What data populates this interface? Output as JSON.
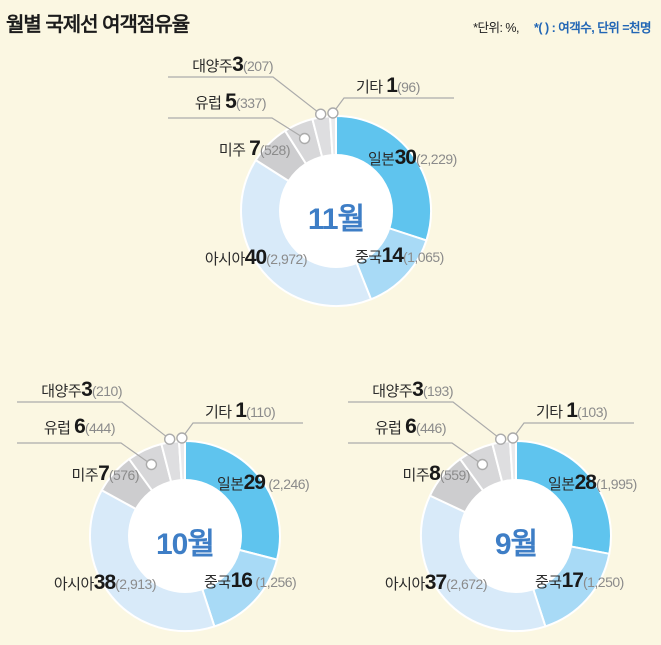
{
  "page": {
    "bg": "#FBF7E2"
  },
  "header": {
    "title": "월별 국제선 여객점유율",
    "unit_note_dark": "*단위: %,",
    "unit_note_blue": "*( ) : 여객수, 단위 =천명"
  },
  "colors": {
    "japan": "#5FC4EE",
    "china": "#A8DAF6",
    "asia": "#D8EAF9",
    "americas": "#CDCDCF",
    "europe": "#D7D7D9",
    "oceania": "#DEDEE0",
    "etc": "#EAEAEC",
    "hole": "#FFFFFF",
    "center_label": "#3E7EC6",
    "note_blue": "#2166B5",
    "leader_line": "#ABABAB"
  },
  "chart_data": {
    "type": "pie",
    "subtype": "donut",
    "title": "월별 국제선 여객점유율",
    "unit": "%",
    "paren_note": "여객수, 단위 =천명",
    "segments_order": [
      "일본",
      "중국",
      "아시아",
      "미주",
      "유럽",
      "대양주",
      "기타"
    ],
    "charts": [
      {
        "id": "nov",
        "center": "11월",
        "slices": [
          {
            "key": "japan",
            "name": "일본",
            "pct": 30,
            "count": "(2,229)"
          },
          {
            "key": "china",
            "name": "중국",
            "pct": 14,
            "count": "(1,065)"
          },
          {
            "key": "asia",
            "name": "아시아",
            "pct": 40,
            "count": "(2,972)"
          },
          {
            "key": "americas",
            "name": "미주 ",
            "pct": 7,
            "count": "(528)"
          },
          {
            "key": "europe",
            "name": "유럽 ",
            "pct": 5,
            "count": "(337)"
          },
          {
            "key": "oceania",
            "name": "대양주",
            "pct": 3,
            "count": "(207)"
          },
          {
            "key": "etc",
            "name": "기타 ",
            "pct": 1,
            "count": "(96)"
          }
        ]
      },
      {
        "id": "oct",
        "center": "10월",
        "slices": [
          {
            "key": "japan",
            "name": "일본",
            "pct": 29,
            "count": " (2,246)"
          },
          {
            "key": "china",
            "name": "중국",
            "pct": 16,
            "count": " (1,256)"
          },
          {
            "key": "asia",
            "name": "아시아",
            "pct": 38,
            "count": "(2,913)"
          },
          {
            "key": "americas",
            "name": "미주",
            "pct": 7,
            "count": "(576)"
          },
          {
            "key": "europe",
            "name": "유럽 ",
            "pct": 6,
            "count": "(444)"
          },
          {
            "key": "oceania",
            "name": "대양주",
            "pct": 3,
            "count": "(210)"
          },
          {
            "key": "etc",
            "name": "기타 ",
            "pct": 1,
            "count": "(110)"
          }
        ]
      },
      {
        "id": "sep",
        "center": "9월",
        "slices": [
          {
            "key": "japan",
            "name": "일본",
            "pct": 28,
            "count": "(1,995)"
          },
          {
            "key": "china",
            "name": "중국",
            "pct": 17,
            "count": "(1,250)"
          },
          {
            "key": "asia",
            "name": "아시아",
            "pct": 37,
            "count": "(2,672)"
          },
          {
            "key": "americas",
            "name": "미주",
            "pct": 8,
            "count": "(559)"
          },
          {
            "key": "europe",
            "name": "유럽 ",
            "pct": 6,
            "count": "(446)"
          },
          {
            "key": "oceania",
            "name": "대양주",
            "pct": 3,
            "count": "(193)"
          },
          {
            "key": "etc",
            "name": "기타 ",
            "pct": 1,
            "count": "(103)"
          }
        ]
      }
    ]
  }
}
